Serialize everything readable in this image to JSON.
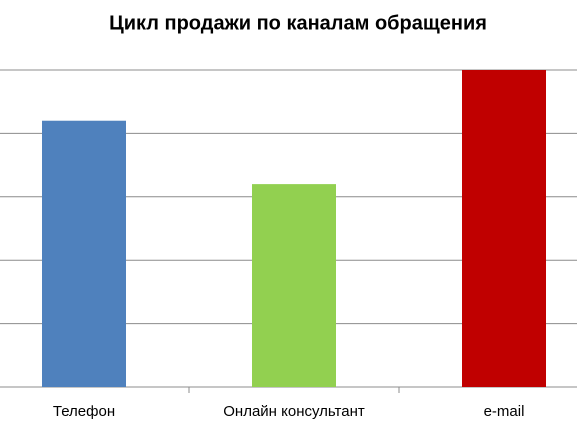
{
  "chart_data": {
    "type": "bar",
    "title": "Цикл продажи по каналам обращения",
    "categories": [
      "Телефон",
      "Онлайн консультант",
      "e-mail"
    ],
    "values": [
      4.2,
      3.2,
      5.0
    ],
    "colors": [
      "#4f81bd",
      "#92d050",
      "#c00000"
    ],
    "ylim": [
      0,
      5
    ],
    "yticks": [
      0,
      1,
      2,
      3,
      4,
      5
    ],
    "grid": true
  }
}
